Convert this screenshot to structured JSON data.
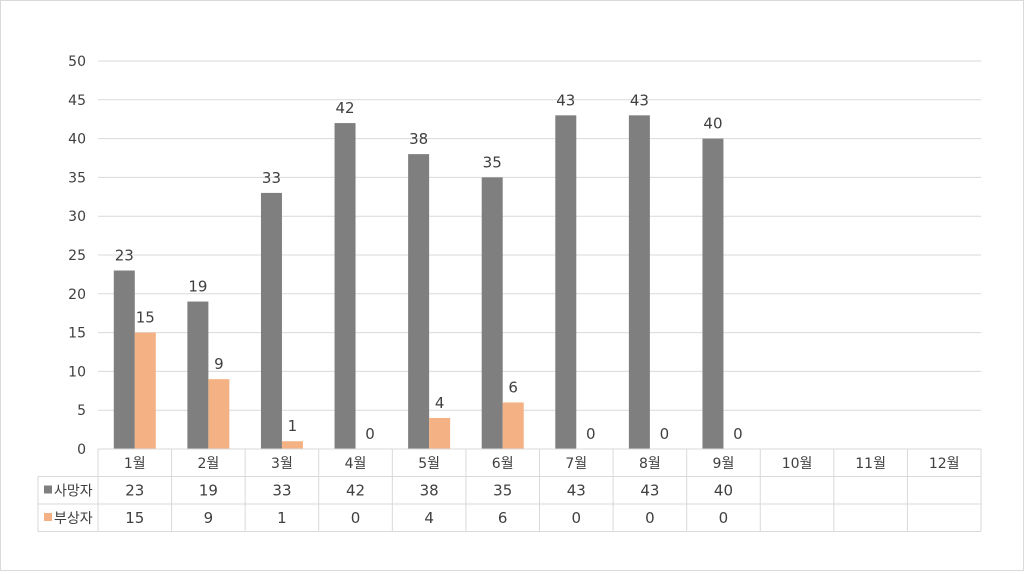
{
  "chart_data": {
    "type": "bar",
    "title": "",
    "xlabel": "",
    "ylabel": "",
    "categories": [
      "1월",
      "2월",
      "3월",
      "4월",
      "5월",
      "6월",
      "7월",
      "8월",
      "9월",
      "10월",
      "11월",
      "12월"
    ],
    "series": [
      {
        "name": "사망자",
        "color": "#7f7f7f",
        "values": [
          23,
          19,
          33,
          42,
          38,
          35,
          43,
          43,
          40,
          null,
          null,
          null
        ]
      },
      {
        "name": "부상자",
        "color": "#f4b183",
        "values": [
          15,
          9,
          1,
          0,
          4,
          6,
          0,
          0,
          0,
          null,
          null,
          null
        ]
      }
    ],
    "ylim": [
      0,
      50
    ],
    "yticks": [
      0,
      5,
      10,
      15,
      20,
      25,
      30,
      35,
      40,
      45,
      50
    ],
    "grid": true,
    "data_labels": true,
    "legend": "data-table"
  }
}
